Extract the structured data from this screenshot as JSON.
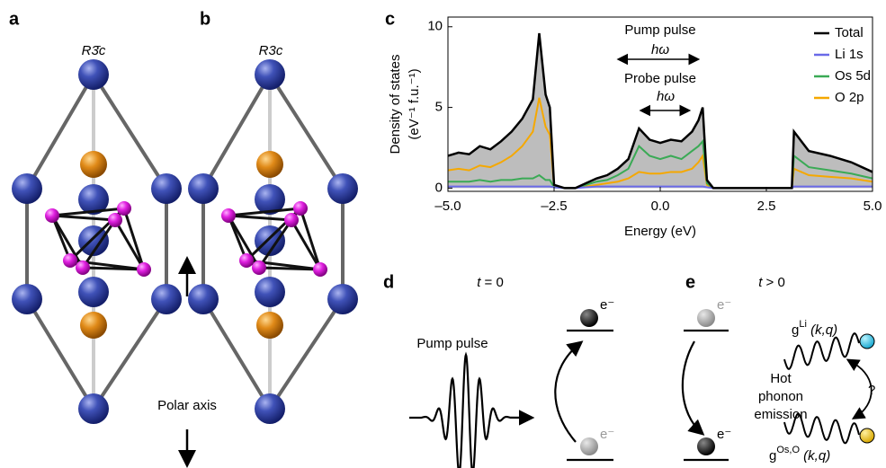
{
  "panel_labels": [
    "a",
    "b",
    "c",
    "d",
    "e"
  ],
  "structure_a": {
    "space_group": "R3̄c"
  },
  "structure_b": {
    "space_group": "R3c"
  },
  "polar_axis_label": "Polar axis",
  "chart_data": {
    "type": "line",
    "xlabel": "Energy (eV)",
    "ylabel": [
      "Density of states",
      "(eV⁻¹ f.u.⁻¹)"
    ],
    "x": [
      -5,
      -4.75,
      -4.5,
      -4.25,
      -4,
      -3.75,
      -3.5,
      -3.25,
      -3,
      -2.85,
      -2.7,
      -2.6,
      -2.5,
      -2.25,
      -2,
      -1.75,
      -1.5,
      -1.25,
      -1,
      -0.75,
      -0.5,
      -0.25,
      0,
      0.25,
      0.5,
      0.75,
      0.9,
      1,
      1.1,
      1.25,
      1.5,
      2,
      2.5,
      3,
      3.1,
      3.15,
      3.5,
      4,
      4.5,
      5
    ],
    "series": [
      {
        "name": "Total",
        "color": "#000000",
        "fill": "#bdbdbd",
        "values": [
          2.0,
          2.2,
          2.1,
          2.6,
          2.4,
          2.9,
          3.5,
          4.3,
          5.5,
          9.6,
          5.8,
          5.0,
          0.2,
          0,
          0,
          0.3,
          0.6,
          0.8,
          1.2,
          1.8,
          3.7,
          3.0,
          2.8,
          3.0,
          2.9,
          3.5,
          4.2,
          5.0,
          0.5,
          0,
          0,
          0,
          0,
          0,
          0,
          3.5,
          2.3,
          2.0,
          1.6,
          1.0
        ]
      },
      {
        "name": "Li 1s",
        "color": "#6a6ae8",
        "values": [
          0.1,
          0.1,
          0.1,
          0.1,
          0.1,
          0.1,
          0.1,
          0.1,
          0.1,
          0.1,
          0.1,
          0.1,
          0.05,
          0,
          0,
          0.05,
          0.1,
          0.1,
          0.1,
          0.1,
          0.1,
          0.1,
          0.1,
          0.1,
          0.1,
          0.1,
          0.1,
          0.1,
          0.05,
          0,
          0,
          0,
          0,
          0,
          0,
          0.1,
          0.1,
          0.1,
          0.1,
          0.1
        ]
      },
      {
        "name": "Os 5d",
        "color": "#3aaa55",
        "values": [
          0.4,
          0.4,
          0.4,
          0.5,
          0.4,
          0.5,
          0.5,
          0.6,
          0.6,
          0.8,
          0.5,
          0.5,
          0.05,
          0,
          0,
          0.2,
          0.4,
          0.5,
          0.8,
          1.2,
          2.6,
          2.0,
          1.8,
          2.0,
          1.8,
          2.3,
          2.6,
          2.9,
          0.3,
          0,
          0,
          0,
          0,
          0,
          0,
          2.0,
          1.3,
          1.1,
          0.9,
          0.6
        ]
      },
      {
        "name": "O 2p",
        "color": "#f5a800",
        "values": [
          1.1,
          1.2,
          1.1,
          1.4,
          1.3,
          1.6,
          2.0,
          2.6,
          3.5,
          5.6,
          3.8,
          3.3,
          0.1,
          0,
          0,
          0.1,
          0.2,
          0.3,
          0.4,
          0.6,
          1.0,
          0.9,
          0.9,
          1.0,
          1.0,
          1.2,
          1.6,
          2.0,
          0.2,
          0,
          0,
          0,
          0,
          0,
          0,
          1.2,
          0.8,
          0.7,
          0.6,
          0.4
        ]
      }
    ],
    "xlim": [
      -5,
      5
    ],
    "xticks": [
      {
        "value": -5,
        "label": "–5.0"
      },
      {
        "value": -2.5,
        "label": "–2.5"
      },
      {
        "value": 0,
        "label": "0.0"
      },
      {
        "value": 2.5,
        "label": "2.5"
      },
      {
        "value": 5,
        "label": "5.0"
      }
    ],
    "ylim": [
      -0.2,
      10.6
    ],
    "yticks": [
      0,
      5,
      10
    ],
    "legend": "upper right",
    "annotations": [
      "Pump pulse",
      "hω",
      "Probe pulse",
      "hω"
    ]
  },
  "panel_d": {
    "time_var": "t",
    "time_rel": " = 0",
    "pulse_label": "Pump pulse",
    "electron_top": "e⁻",
    "electron_bottom": "e⁻"
  },
  "panel_e": {
    "time_var": "t",
    "time_rel": " > 0",
    "electron_top": "e⁻",
    "electron_bottom": "e⁻",
    "process": [
      "Hot",
      "phonon",
      "emission"
    ],
    "coupling_li": {
      "symbol": "g",
      "superscript": "Li",
      "args": " (k,q)"
    },
    "coupling_os": {
      "symbol": "g",
      "superscript": "Os,O",
      "args": " (k,q)"
    },
    "question": "?"
  }
}
